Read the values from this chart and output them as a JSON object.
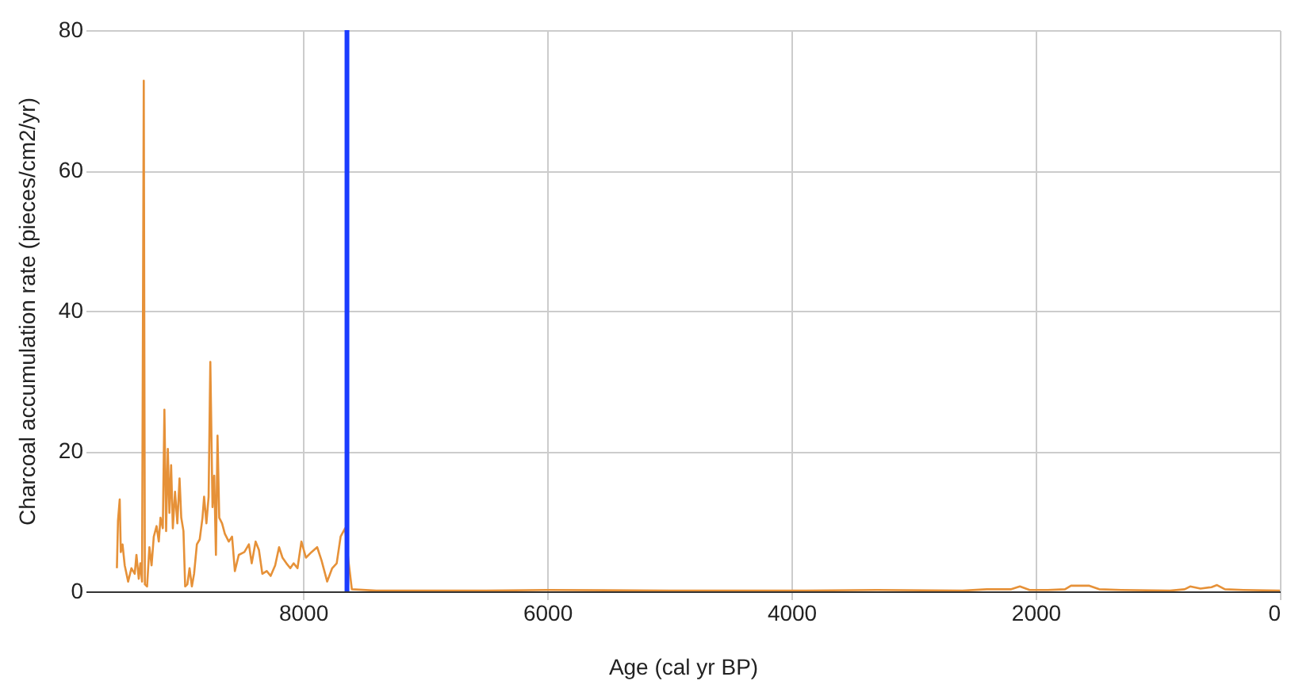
{
  "chart_data": {
    "type": "line",
    "xlabel": "Age (cal yr BP)",
    "ylabel": "Charcoal accumulation rate (pieces/cm2/yr)",
    "xlim": [
      9780,
      0
    ],
    "xticks": [
      8000,
      6000,
      4000,
      2000,
      0
    ],
    "ylim": [
      0,
      80
    ],
    "yticks": [
      0,
      20,
      40,
      60,
      80
    ],
    "grid": true,
    "ref_lines": [
      {
        "axis": "x",
        "value": 7640,
        "color": "#1a3cff"
      }
    ],
    "series": [
      {
        "color": "#e69138",
        "x": [
          9524,
          9515,
          9501,
          9492,
          9478,
          9460,
          9432,
          9405,
          9378,
          9364,
          9345,
          9332,
          9318,
          9304,
          9295,
          9277,
          9258,
          9240,
          9222,
          9199,
          9181,
          9167,
          9148,
          9135,
          9121,
          9107,
          9094,
          9080,
          9066,
          9048,
          9029,
          9011,
          8997,
          8979,
          8965,
          8947,
          8929,
          8910,
          8892,
          8869,
          8846,
          8823,
          8810,
          8791,
          8773,
          8759,
          8741,
          8727,
          8713,
          8700,
          8686,
          8663,
          8640,
          8608,
          8581,
          8558,
          8526,
          8480,
          8443,
          8420,
          8388,
          8361,
          8333,
          8297,
          8265,
          8228,
          8196,
          8168,
          8136,
          8104,
          8077,
          8045,
          8013,
          7976,
          7930,
          7884,
          7848,
          7802,
          7761,
          7724,
          7692,
          7655,
          7628,
          7600,
          7400,
          6500,
          6000,
          5000,
          4000,
          3300,
          2600,
          2400,
          2200,
          2129,
          2050,
          1900,
          1760,
          1711,
          1560,
          1480,
          1300,
          900,
          780,
          735,
          650,
          560,
          515,
          450,
          300,
          0
        ],
        "values": [
          3.3,
          10.1,
          13.1,
          5.6,
          6.7,
          3.7,
          1.4,
          3.3,
          2.5,
          5.2,
          1.8,
          4.0,
          1.4,
          72.8,
          1.0,
          0.7,
          6.3,
          3.7,
          7.8,
          9.3,
          7.1,
          10.5,
          9.0,
          25.9,
          8.6,
          20.3,
          11.2,
          18.0,
          9.0,
          14.2,
          9.7,
          16.1,
          10.5,
          8.6,
          0.7,
          1.0,
          3.3,
          0.7,
          2.5,
          6.7,
          7.4,
          10.5,
          13.5,
          9.7,
          13.5,
          32.7,
          12.0,
          16.5,
          5.2,
          22.2,
          10.5,
          9.7,
          8.2,
          7.1,
          7.8,
          2.9,
          5.2,
          5.6,
          6.7,
          4.0,
          7.1,
          5.9,
          2.5,
          2.9,
          2.2,
          3.7,
          6.3,
          4.8,
          4.0,
          3.3,
          4.0,
          3.3,
          7.1,
          4.8,
          5.6,
          6.3,
          4.4,
          1.4,
          3.3,
          4.0,
          7.8,
          9.0,
          4.4,
          0.3,
          0.1,
          0.1,
          0.2,
          0.1,
          0.1,
          0.2,
          0.1,
          0.3,
          0.3,
          0.7,
          0.2,
          0.2,
          0.3,
          0.8,
          0.8,
          0.3,
          0.2,
          0.1,
          0.3,
          0.7,
          0.4,
          0.6,
          0.9,
          0.3,
          0.2,
          0.1
        ]
      }
    ]
  }
}
